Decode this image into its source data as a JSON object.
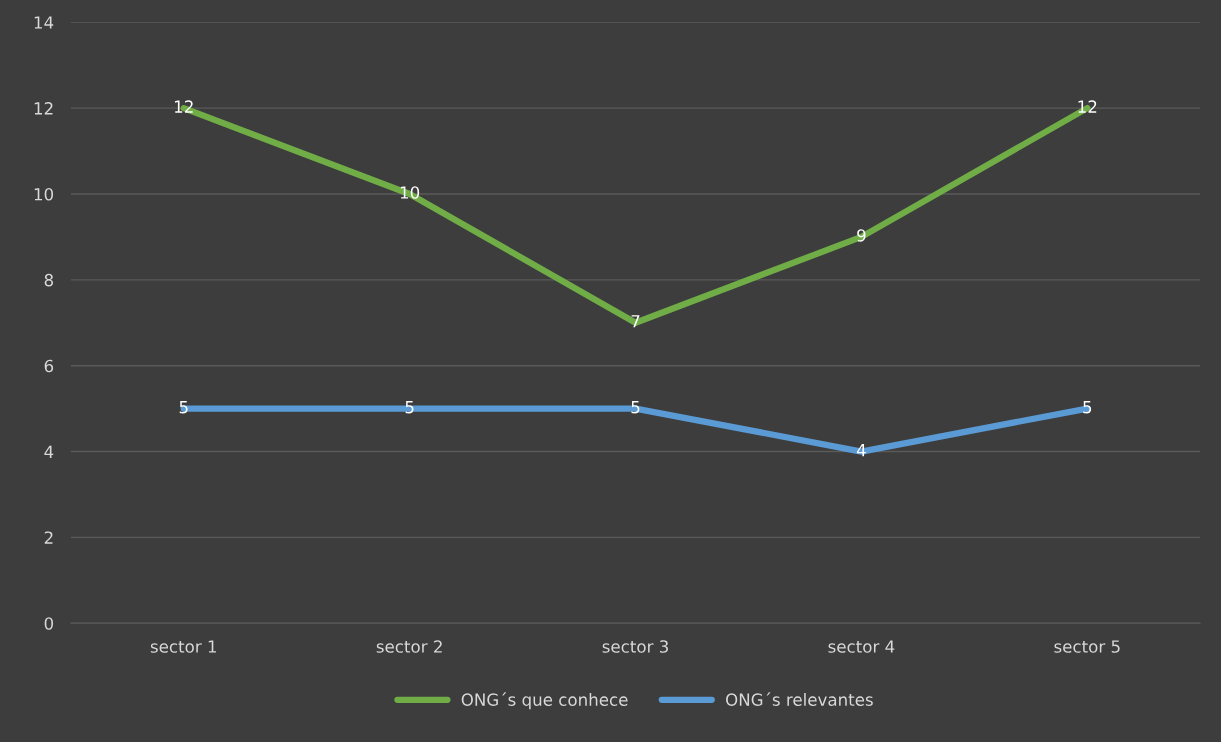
{
  "chart_data": {
    "type": "line",
    "categories": [
      "sector 1",
      "sector 2",
      "sector 3",
      "sector 4",
      "sector 5"
    ],
    "series": [
      {
        "name": "ONG´s que conhece",
        "color": "#70ad47",
        "values": [
          12,
          10,
          7,
          9,
          12
        ]
      },
      {
        "name": "ONG´s relevantes",
        "color": "#5b9bd5",
        "values": [
          5,
          5,
          5,
          4,
          5
        ]
      }
    ],
    "ylim": [
      0,
      14
    ],
    "yticks": [
      0,
      2,
      4,
      6,
      8,
      10,
      12,
      14
    ],
    "grid": "y",
    "legend": "bottom",
    "data_labels": true,
    "marker": "none",
    "line_style": "solid"
  }
}
